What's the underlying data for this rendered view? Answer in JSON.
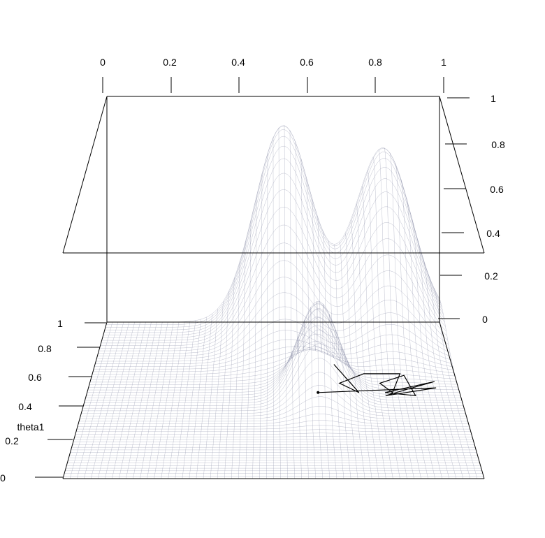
{
  "chart_data": {
    "type": "surface3d",
    "x_tick_labels": [
      "0",
      "0.2",
      "0.4",
      "0.6",
      "0.8",
      "1"
    ],
    "y_tick_labels": [
      "0",
      "0.2",
      "0.4",
      "0.6",
      "0.8",
      "1"
    ],
    "z_tick_labels": [
      "0",
      "0.2",
      "0.4",
      "0.6",
      "0.8",
      "1"
    ],
    "y_label": "theta1",
    "xlim": [
      0,
      1
    ],
    "ylim": [
      0,
      1
    ],
    "zlim": [
      0,
      1
    ],
    "surface_peaks": [
      {
        "x": 0.53,
        "y": 0.98,
        "height": 0.88
      },
      {
        "x": 0.83,
        "y": 0.98,
        "height": 0.78
      },
      {
        "x": 0.62,
        "y": 0.52,
        "height": 0.42
      }
    ],
    "mesh_color": "#b8bdd4",
    "trace_color": "#000000",
    "trace_points": [
      [
        0.62,
        0.55
      ],
      [
        0.94,
        0.58
      ],
      [
        0.8,
        0.53
      ],
      [
        0.86,
        0.57
      ],
      [
        0.94,
        0.62
      ],
      [
        0.8,
        0.55
      ],
      [
        0.88,
        0.53
      ],
      [
        0.86,
        0.66
      ],
      [
        0.79,
        0.61
      ],
      [
        0.82,
        0.55
      ],
      [
        0.85,
        0.67
      ],
      [
        0.75,
        0.67
      ],
      [
        0.68,
        0.61
      ],
      [
        0.73,
        0.55
      ],
      [
        0.67,
        0.73
      ]
    ]
  }
}
